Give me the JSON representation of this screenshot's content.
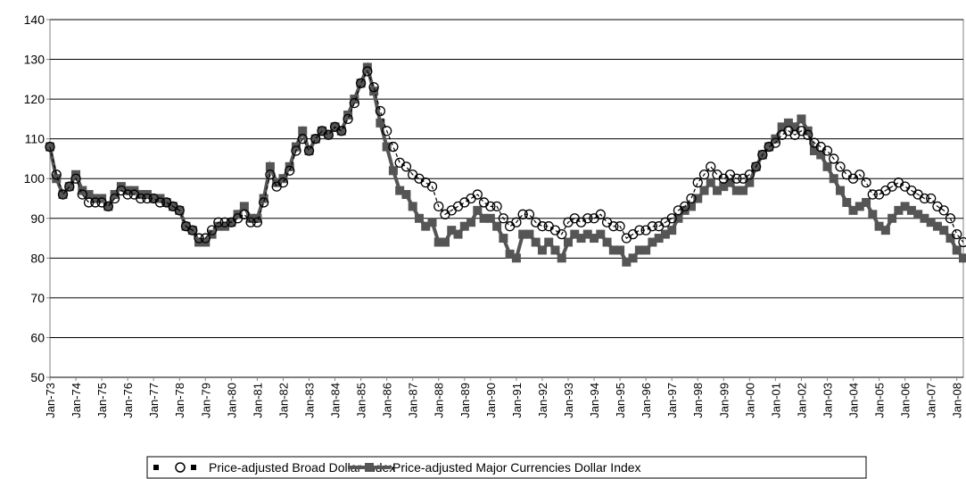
{
  "chart_data": {
    "type": "line",
    "categories": [
      "Jan-73",
      null,
      null,
      null,
      "Jan-74",
      null,
      null,
      null,
      "Jan-75",
      null,
      null,
      null,
      "Jan-76",
      null,
      null,
      null,
      "Jan-77",
      null,
      null,
      null,
      "Jan-78",
      null,
      null,
      null,
      "Jan-79",
      null,
      null,
      null,
      "Jan-80",
      null,
      null,
      null,
      "Jan-81",
      null,
      null,
      null,
      "Jan-82",
      null,
      null,
      null,
      "Jan-83",
      null,
      null,
      null,
      "Jan-84",
      null,
      null,
      null,
      "Jan-85",
      null,
      null,
      null,
      "Jan-86",
      null,
      null,
      null,
      "Jan-87",
      null,
      null,
      null,
      "Jan-88",
      null,
      null,
      null,
      "Jan-89",
      null,
      null,
      null,
      "Jan-90",
      null,
      null,
      null,
      "Jan-91",
      null,
      null,
      null,
      "Jan-92",
      null,
      null,
      null,
      "Jan-93",
      null,
      null,
      null,
      "Jan-94",
      null,
      null,
      null,
      "Jan-95",
      null,
      null,
      null,
      "Jan-96",
      null,
      null,
      null,
      "Jan-97",
      null,
      null,
      null,
      "Jan-98",
      null,
      null,
      null,
      "Jan-99",
      null,
      null,
      null,
      "Jan-00",
      null,
      null,
      null,
      "Jan-01",
      null,
      null,
      null,
      "Jan-02",
      null,
      null,
      null,
      "Jan-03",
      null,
      null,
      null,
      "Jan-04",
      null,
      null,
      null,
      "Jan-05",
      null,
      null,
      null,
      "Jan-06",
      null,
      null,
      null,
      "Jan-07",
      null,
      null,
      null,
      "Jan-08",
      null
    ],
    "series": [
      {
        "name": "Price-adjusted Broad Dollar Index",
        "color": "#000000",
        "marker": "circle",
        "values": [
          108,
          101,
          96,
          98,
          100,
          96,
          94,
          94,
          94,
          93,
          95,
          97,
          96,
          96,
          95,
          95,
          95,
          94,
          94,
          93,
          92,
          88,
          87,
          85,
          85,
          87,
          89,
          89,
          89,
          90,
          91,
          89,
          89,
          94,
          101,
          98,
          99,
          102,
          107,
          110,
          107,
          110,
          112,
          111,
          113,
          112,
          115,
          119,
          124,
          127,
          123,
          117,
          112,
          108,
          104,
          103,
          101,
          100,
          99,
          98,
          93,
          91,
          92,
          93,
          94,
          95,
          96,
          94,
          93,
          93,
          90,
          88,
          89,
          91,
          91,
          89,
          88,
          88,
          87,
          86,
          89,
          90,
          89,
          90,
          90,
          91,
          89,
          88,
          88,
          85,
          86,
          87,
          87,
          88,
          88,
          89,
          90,
          92,
          93,
          95,
          99,
          101,
          103,
          101,
          100,
          101,
          100,
          100,
          101,
          103,
          106,
          108,
          109,
          111,
          112,
          111,
          112,
          111,
          109,
          108,
          107,
          105,
          103,
          101,
          100,
          101,
          99,
          96,
          96,
          97,
          98,
          99,
          98,
          97,
          96,
          95,
          95,
          93,
          92,
          90,
          86,
          84
        ]
      },
      {
        "name": "Price-adjusted Major Currencies Dollar Index",
        "color": "#555555",
        "marker": "square",
        "values": [
          108,
          100,
          96,
          98,
          101,
          97,
          96,
          95,
          95,
          93,
          96,
          98,
          97,
          97,
          96,
          96,
          95,
          95,
          94,
          93,
          92,
          88,
          87,
          84,
          84,
          86,
          88,
          88,
          89,
          91,
          93,
          90,
          90,
          95,
          103,
          99,
          100,
          103,
          108,
          112,
          107,
          110,
          112,
          111,
          113,
          112,
          116,
          120,
          124,
          128,
          122,
          114,
          108,
          102,
          97,
          96,
          93,
          90,
          88,
          89,
          84,
          84,
          87,
          86,
          88,
          89,
          92,
          90,
          90,
          88,
          85,
          81,
          80,
          86,
          86,
          84,
          82,
          84,
          82,
          80,
          84,
          86,
          85,
          86,
          85,
          86,
          84,
          82,
          82,
          79,
          80,
          82,
          82,
          84,
          85,
          86,
          87,
          90,
          92,
          93,
          95,
          97,
          99,
          97,
          98,
          99,
          97,
          97,
          99,
          103,
          106,
          108,
          110,
          113,
          114,
          113,
          115,
          112,
          107,
          106,
          103,
          100,
          97,
          94,
          92,
          93,
          94,
          91,
          88,
          87,
          90,
          92,
          93,
          92,
          91,
          90,
          89,
          88,
          87,
          85,
          82,
          80
        ]
      }
    ],
    "ylim": [
      50,
      140
    ],
    "yticks": [
      50,
      60,
      70,
      80,
      90,
      100,
      110,
      120,
      130,
      140
    ],
    "grid": true
  }
}
